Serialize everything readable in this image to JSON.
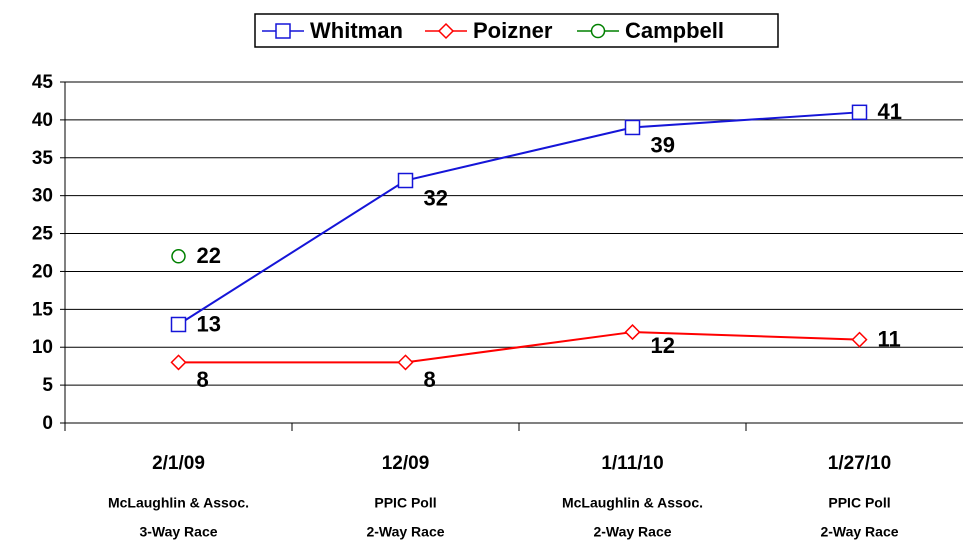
{
  "chart_data": {
    "type": "line",
    "categories": [
      [
        "2/1/09",
        "McLaughlin & Assoc.",
        "3-Way Race"
      ],
      [
        "12/09",
        "PPIC Poll",
        "2-Way Race"
      ],
      [
        "1/11/10",
        "McLaughlin & Assoc.",
        "2-Way Race"
      ],
      [
        "1/27/10",
        "PPIC Poll",
        "2-Way Race"
      ]
    ],
    "series": [
      {
        "name": "Whitman",
        "color": "#1515d8",
        "marker": "square",
        "values": [
          13,
          32,
          39,
          41
        ]
      },
      {
        "name": "Poizner",
        "color": "#ff0000",
        "marker": "diamond",
        "values": [
          8,
          8,
          12,
          11
        ]
      },
      {
        "name": "Campbell",
        "color": "#008000",
        "marker": "circle",
        "values": [
          22,
          null,
          null,
          null
        ]
      }
    ],
    "ylim": [
      0,
      45
    ],
    "yticks": [
      0,
      5,
      10,
      15,
      20,
      25,
      30,
      35,
      40,
      45
    ],
    "grid": true,
    "legend": "top"
  }
}
